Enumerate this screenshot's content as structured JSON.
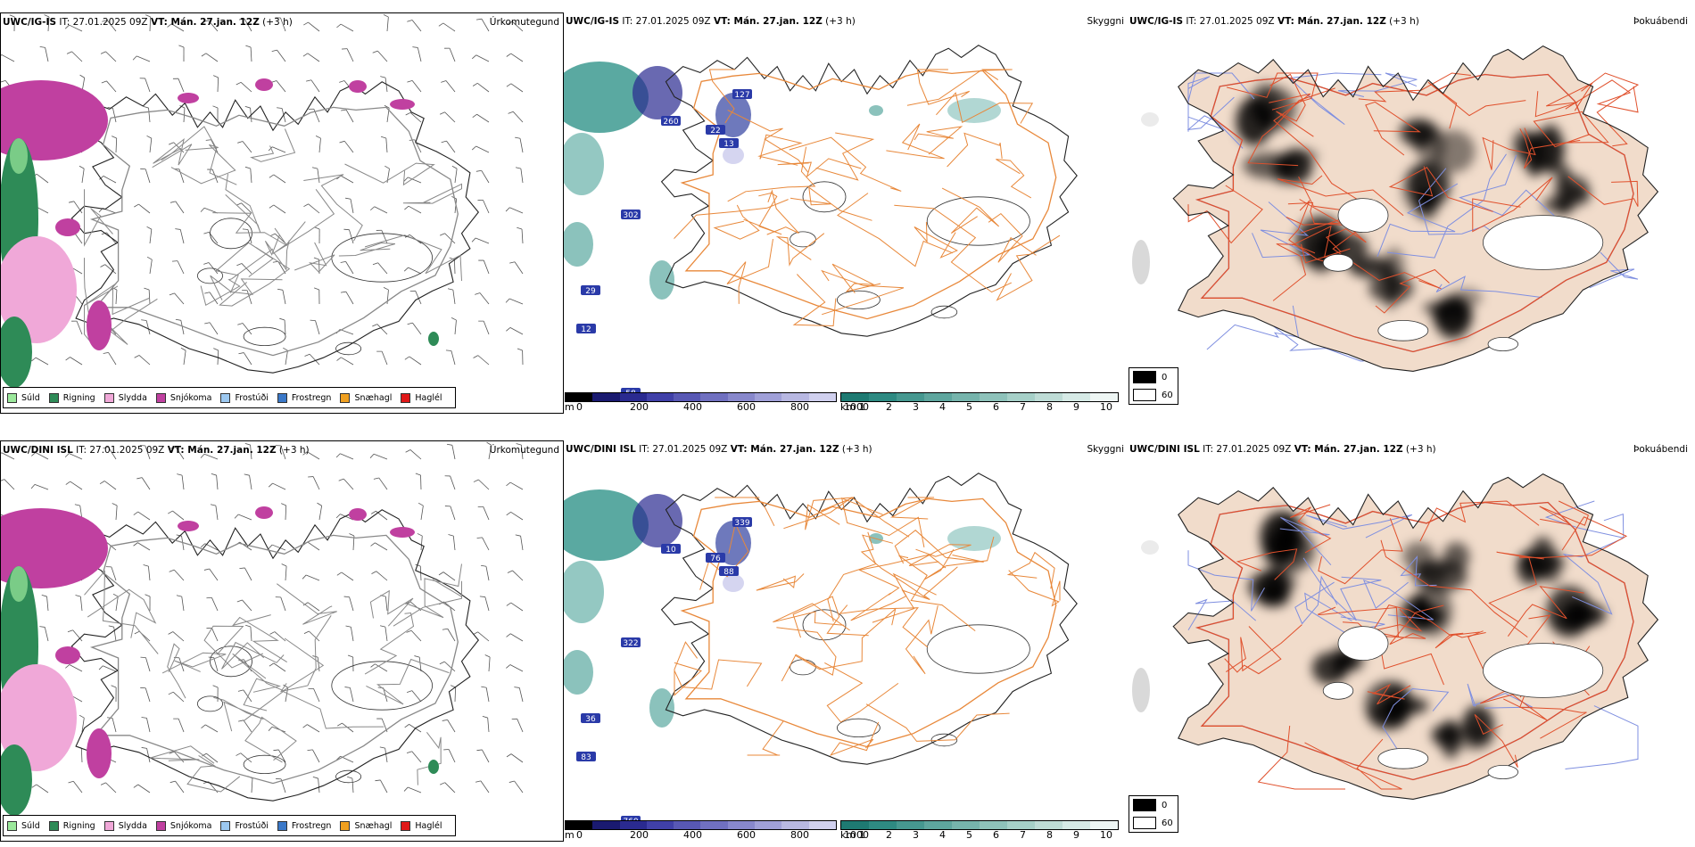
{
  "rows": [
    {
      "model": "UWC/IG-IS",
      "run": "IT: 27.01.2025 09Z",
      "valid_label": "VT: Mán. 27.jan. 12Z",
      "lead": "(+3 h)"
    },
    {
      "model": "UWC/DINI ISL",
      "run": "IT: 27.01.2025 09Z",
      "valid_label": "VT: Mán. 27.jan. 12Z",
      "lead": "(+3 h)"
    }
  ],
  "panel_titles": {
    "precip": "Úrkomutegund",
    "visibility": "Skyggni",
    "fog": "Þokuábendi"
  },
  "precip_legend": [
    {
      "label": "Súld",
      "color": "#9be89b"
    },
    {
      "label": "Rigning",
      "color": "#2e8b57"
    },
    {
      "label": "Slydda",
      "color": "#f0a8d8"
    },
    {
      "label": "Snjókoma",
      "color": "#c040a0"
    },
    {
      "label": "Frostúði",
      "color": "#9cc8f0"
    },
    {
      "label": "Frostregn",
      "color": "#3a78c8"
    },
    {
      "label": "Snæhagl",
      "color": "#f0a020"
    },
    {
      "label": "Haglél",
      "color": "#e01818"
    }
  ],
  "ceiling_scale": {
    "unit": "m",
    "ticks": [
      "0",
      "200",
      "400",
      "600",
      "800",
      "1000"
    ],
    "colors": [
      "#000000",
      "#1a1a70",
      "#2a2a90",
      "#4040a8",
      "#5858b4",
      "#7070c0",
      "#8888cc",
      "#a0a0d8",
      "#b8b8e2",
      "#d0d0ee"
    ]
  },
  "visibility_scale": {
    "unit": "km",
    "ticks": [
      "1",
      "2",
      "3",
      "4",
      "5",
      "6",
      "7",
      "8",
      "9",
      "10"
    ],
    "colors": [
      "#1e7a72",
      "#2e8a82",
      "#469890",
      "#5ea69e",
      "#76b4ac",
      "#8ec2ba",
      "#a6d0c8",
      "#bedcd6",
      "#d6eae6",
      "#eef6f4"
    ]
  },
  "fog_legend": [
    {
      "label": "0",
      "color": "#000000"
    },
    {
      "label": "60",
      "color": "#ffffff"
    }
  ],
  "visibility_values_row1": [
    "127",
    "260",
    "22",
    "13",
    "302",
    "29",
    "12",
    "58"
  ],
  "visibility_values_row2": [
    "339",
    "10",
    "76",
    "88",
    "322",
    "36",
    "83",
    "760"
  ],
  "colors": {
    "coast": "#222222",
    "roads_vis": "#e8883a",
    "roads_fog": "#e0502c",
    "land_fog": "#f1dccb",
    "rivers": "#7f8fe0",
    "snow": "#c040a0",
    "rain": "#2e8b57",
    "sleet": "#f0a8d8",
    "drizzle": "#9be89b",
    "teal": "#3d9a90"
  }
}
